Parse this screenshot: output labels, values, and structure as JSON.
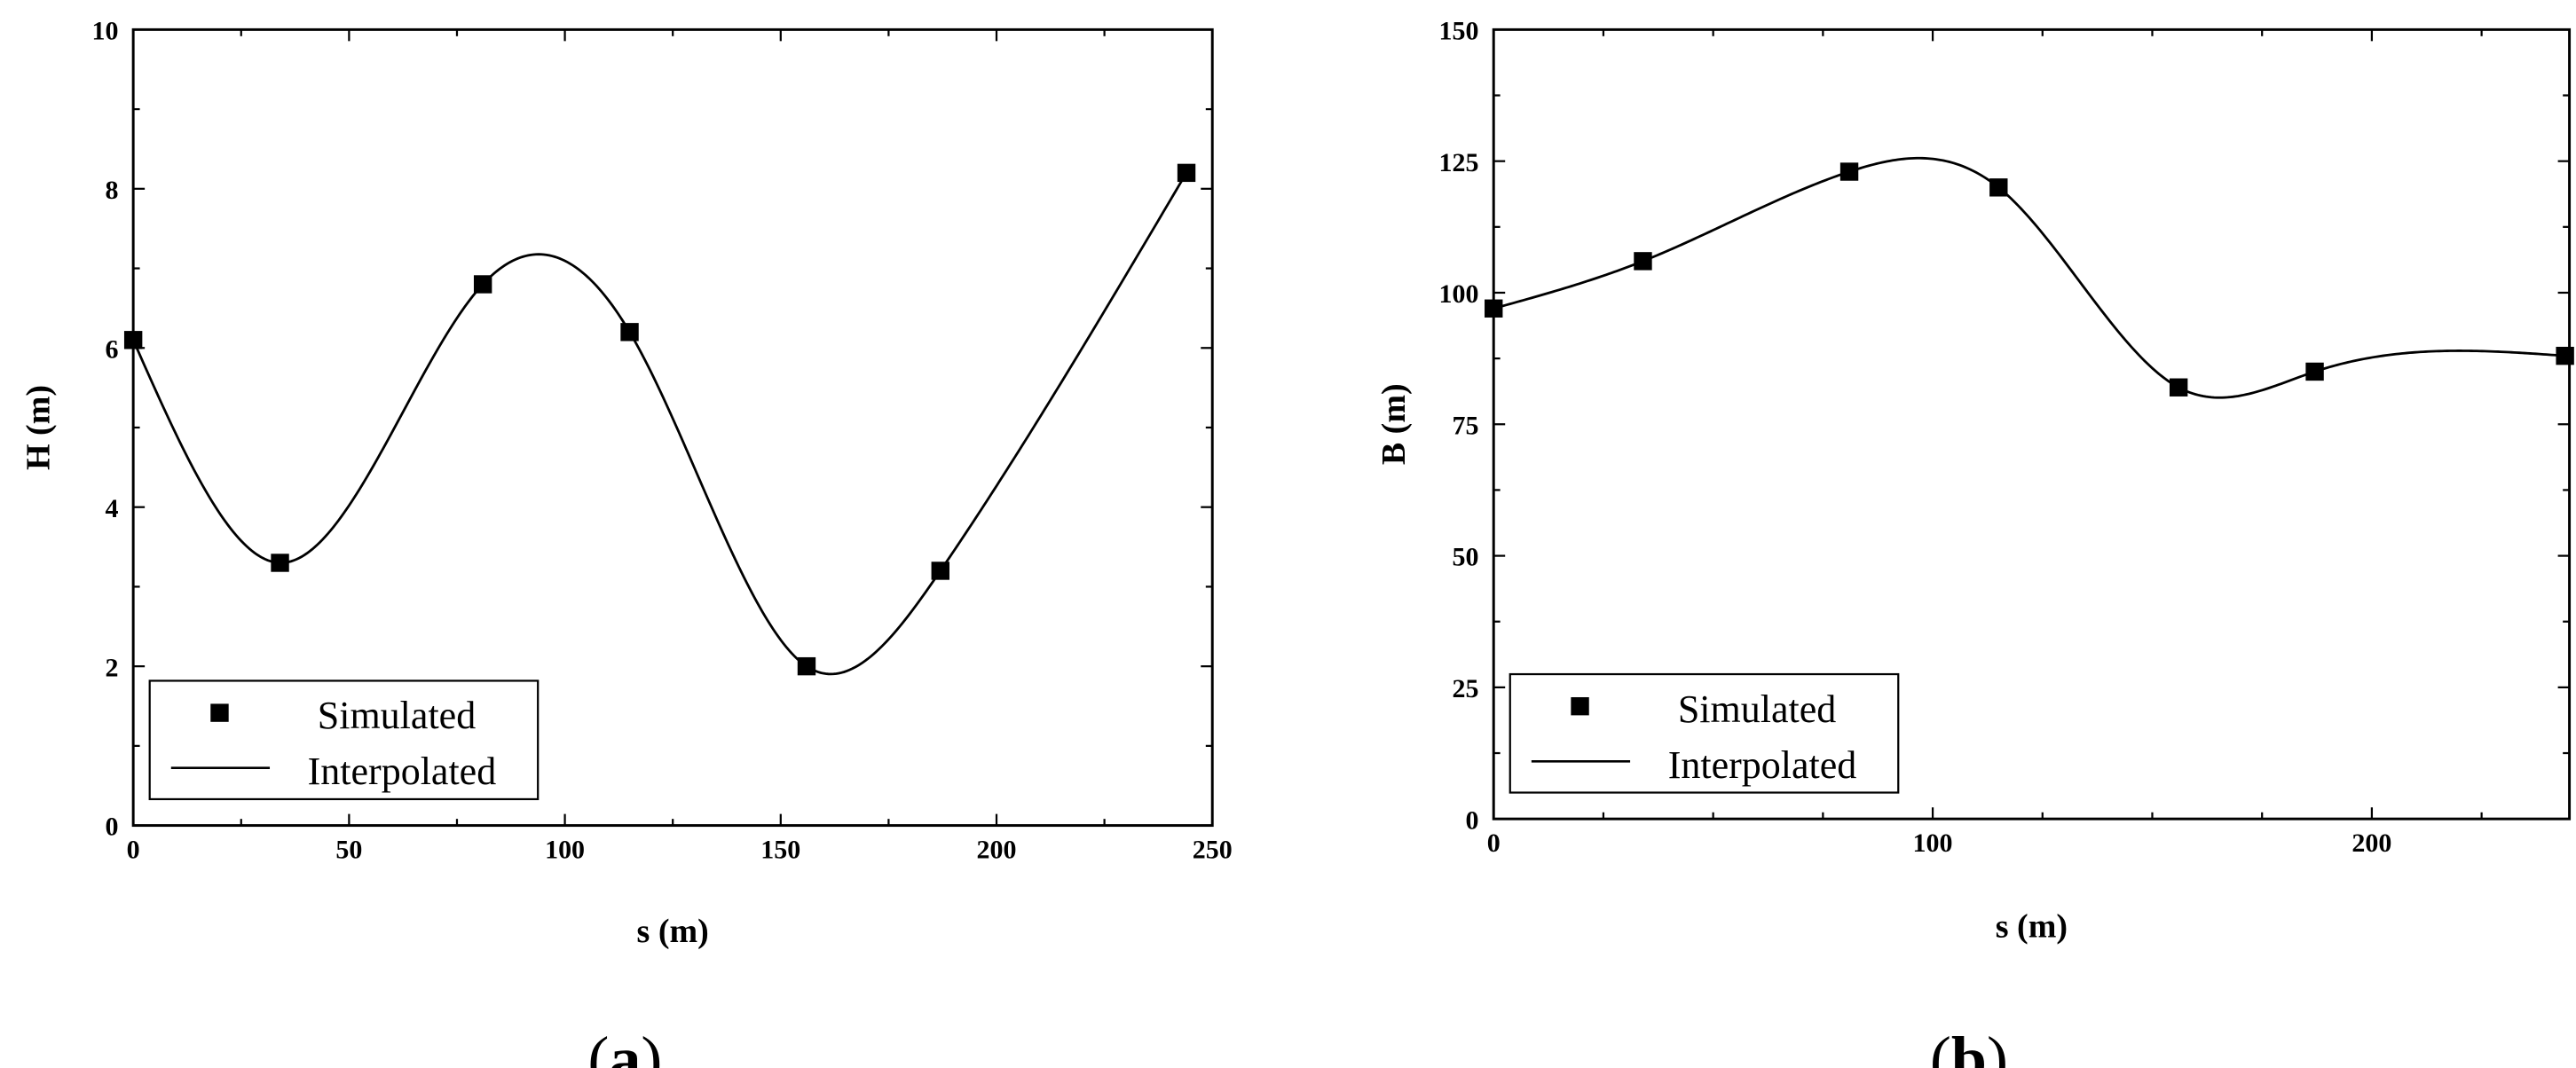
{
  "chart_data": [
    {
      "type": "line",
      "panel_label": "(a)",
      "panel_letter": "a",
      "xlabel": "s (m)",
      "ylabel": "H (m)",
      "xlim": [
        0,
        250
      ],
      "ylim": [
        0,
        10
      ],
      "x_ticks": [
        0,
        50,
        100,
        150,
        200,
        250
      ],
      "y_ticks": [
        0,
        2,
        4,
        6,
        8,
        10
      ],
      "x_minor_step": 25,
      "y_minor_step": 1,
      "grid": false,
      "legend": {
        "position": "bottom-left",
        "entries": [
          "Simulated",
          "Interpolated"
        ]
      },
      "series": [
        {
          "name": "Simulated",
          "style": "square markers",
          "x": [
            0,
            34,
            81,
            115,
            156,
            187,
            244
          ],
          "y": [
            6.1,
            3.3,
            6.8,
            6.2,
            2.0,
            3.2,
            8.2
          ]
        },
        {
          "name": "Interpolated",
          "style": "line",
          "x": [
            0,
            34,
            81,
            115,
            156,
            187,
            244
          ],
          "y": [
            6.1,
            3.3,
            6.8,
            6.2,
            2.0,
            3.2,
            8.2
          ]
        }
      ],
      "color": "#000000"
    },
    {
      "type": "line",
      "panel_label": "(b)",
      "panel_letter": "b",
      "xlabel": "s (m)",
      "ylabel": "B (m)",
      "xlim": [
        0,
        245
      ],
      "ylim": [
        0,
        150
      ],
      "x_ticks": [
        0,
        100,
        200
      ],
      "y_ticks": [
        0,
        25,
        50,
        75,
        100,
        125,
        150
      ],
      "x_minor_step": 25,
      "y_minor_step": 12.5,
      "grid": false,
      "legend": {
        "position": "bottom-left",
        "entries": [
          "Simulated",
          "Interpolated"
        ]
      },
      "series": [
        {
          "name": "Simulated",
          "style": "square markers",
          "x": [
            0,
            34,
            81,
            115,
            156,
            187,
            244
          ],
          "y": [
            97,
            106,
            123,
            120,
            82,
            85,
            88
          ]
        },
        {
          "name": "Interpolated",
          "style": "line",
          "x": [
            0,
            34,
            81,
            115,
            156,
            187,
            244
          ],
          "y": [
            97,
            106,
            123,
            120,
            82,
            85,
            88
          ]
        }
      ],
      "color": "#000000"
    }
  ]
}
